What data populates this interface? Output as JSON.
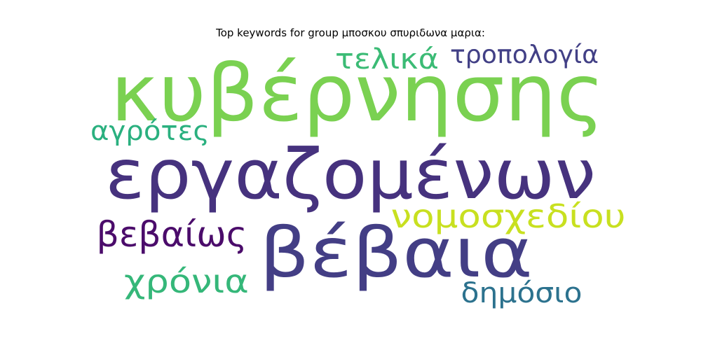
{
  "title": "Top keywords for group μποσκου σπυριδωνα μαρια:",
  "words": [
    {
      "text": "κυβέρνησης",
      "color": "#7ad151"
    },
    {
      "text": "εργαζομένων",
      "color": "#46327e"
    },
    {
      "text": "βέβαια",
      "color": "#433e85"
    },
    {
      "text": "τελικά",
      "color": "#3bbb75"
    },
    {
      "text": "τροπολογία",
      "color": "#424086"
    },
    {
      "text": "αγρότες",
      "color": "#2ab07f"
    },
    {
      "text": "νομοσχεδίου",
      "color": "#c8e020"
    },
    {
      "text": "βεβαίως",
      "color": "#4b0c6b"
    },
    {
      "text": "χρόνια",
      "color": "#35b779"
    },
    {
      "text": "δημόσιο",
      "color": "#2c728e"
    }
  ]
}
